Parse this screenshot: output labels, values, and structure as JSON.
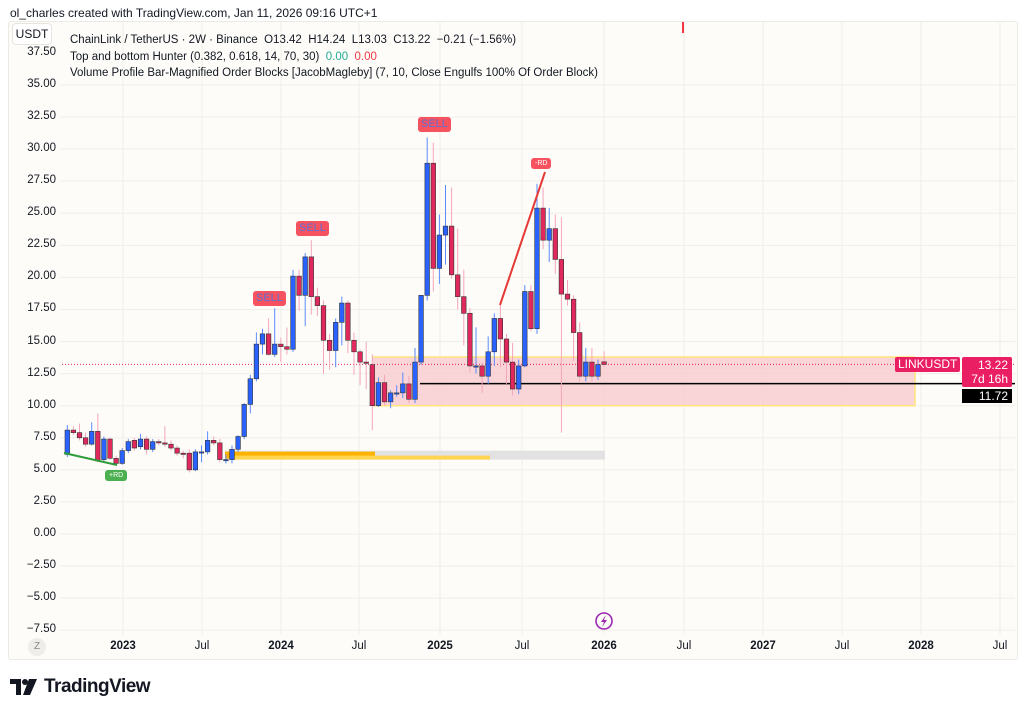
{
  "credit": "ol_charles created with TradingView.com, Jan 11, 2026 09:16 UTC+1",
  "currency_button": "USDT",
  "legend": {
    "main": "ChainLink / TetherUS · 2W · Binance",
    "open": "O13.42",
    "high": "H14.24",
    "low": "L13.03",
    "close": "C13.22",
    "change": "−0.21 (−1.56%)",
    "ind1": "Top and bottom Hunter (0.382, 0.618, 14, 70, 30)",
    "ind1_v1": "0.00",
    "ind1_v2": "0.00",
    "ind2": "Volume Profile Bar-Magnified Order Blocks [JacobMagleby] (7, 10, Close Engulfs 100% Of Order Block)"
  },
  "price_tag": {
    "price": "13.22",
    "countdown": "7d 16h",
    "symbol": "LINKUSDT",
    "level": "11.72"
  },
  "signals": {
    "sell": "SELL",
    "bear_div": "-RD",
    "bull_div": "+RD"
  },
  "z_button": "Z",
  "logo_text": "TradingView",
  "colors": {
    "up": "#2962ff",
    "down": "#e0285c",
    "up_wick": "#5b8cff",
    "down_wick": "#f4a6bb",
    "last_price": "#e91e63",
    "zone": "#f8c8cc",
    "zone_border": "#ffe57a",
    "level": "#000000",
    "bear_div": "#e53935",
    "bull_div": "#2e9d3a",
    "volume_bar": "#ffb300"
  },
  "icons": {
    "lightning": "lightning-icon",
    "logo": "tradingview-logo-icon"
  },
  "chart_data": {
    "type": "candlestick",
    "symbol": "LINKUSDT",
    "interval": "2W",
    "ylim": [
      -7.5,
      37.5
    ],
    "yticks": [
      "37.50",
      "35.00",
      "32.50",
      "30.00",
      "27.50",
      "25.00",
      "22.50",
      "20.00",
      "17.50",
      "15.00",
      "12.50",
      "10.00",
      "7.50",
      "5.00",
      "2.50",
      "0.00",
      "−2.50",
      "−5.00",
      "−7.50"
    ],
    "xticks": [
      {
        "label": "2023",
        "bold": true
      },
      {
        "label": "Jul",
        "bold": false
      },
      {
        "label": "2024",
        "bold": true
      },
      {
        "label": "Jul",
        "bold": false
      },
      {
        "label": "2025",
        "bold": true
      },
      {
        "label": "Jul",
        "bold": false
      },
      {
        "label": "2026",
        "bold": true
      },
      {
        "label": "Jul",
        "bold": false
      },
      {
        "label": "2027",
        "bold": true
      },
      {
        "label": "Jul",
        "bold": false
      },
      {
        "label": "2028",
        "bold": true
      },
      {
        "label": "Jul",
        "bold": false
      }
    ],
    "grid": true,
    "candles_ohlc": [
      [
        6.2,
        8.5,
        6.0,
        8.1
      ],
      [
        8.1,
        8.4,
        7.7,
        7.9
      ],
      [
        7.9,
        8.6,
        7.3,
        7.5
      ],
      [
        7.5,
        7.9,
        6.8,
        7.0
      ],
      [
        7.0,
        8.7,
        6.9,
        8.0
      ],
      [
        8.0,
        9.4,
        5.6,
        5.7
      ],
      [
        5.8,
        7.6,
        5.6,
        7.4
      ],
      [
        7.4,
        7.5,
        5.8,
        5.9
      ],
      [
        5.9,
        6.1,
        5.3,
        5.5
      ],
      [
        5.5,
        6.7,
        5.4,
        6.5
      ],
      [
        6.5,
        7.4,
        6.3,
        7.2
      ],
      [
        7.3,
        7.5,
        6.5,
        6.7
      ],
      [
        6.8,
        7.8,
        6.6,
        7.4
      ],
      [
        7.4,
        7.6,
        6.2,
        6.6
      ],
      [
        6.6,
        7.4,
        6.4,
        7.2
      ],
      [
        7.2,
        7.4,
        6.9,
        7.1
      ],
      [
        7.1,
        8.4,
        6.8,
        7.0
      ],
      [
        7.0,
        7.3,
        6.5,
        6.7
      ],
      [
        6.7,
        6.9,
        6.1,
        6.3
      ],
      [
        6.3,
        6.5,
        5.9,
        6.2
      ],
      [
        6.3,
        6.6,
        4.8,
        5.0
      ],
      [
        5.0,
        6.6,
        4.9,
        6.4
      ],
      [
        6.4,
        6.9,
        5.6,
        6.4
      ],
      [
        6.4,
        8.0,
        6.2,
        7.3
      ],
      [
        7.3,
        7.6,
        6.9,
        7.1
      ],
      [
        7.1,
        7.4,
        5.6,
        5.8
      ],
      [
        5.8,
        6.2,
        5.5,
        5.8
      ],
      [
        5.8,
        6.9,
        5.5,
        6.6
      ],
      [
        6.6,
        7.7,
        6.4,
        7.6
      ],
      [
        7.6,
        10.2,
        7.4,
        10.1
      ],
      [
        10.1,
        12.4,
        9.4,
        12.1
      ],
      [
        12.1,
        15.7,
        11.9,
        14.8
      ],
      [
        14.8,
        16.0,
        14.0,
        15.6
      ],
      [
        15.6,
        16.8,
        13.9,
        14.0
      ],
      [
        14.0,
        17.6,
        13.8,
        14.8
      ],
      [
        14.8,
        15.3,
        13.4,
        14.6
      ],
      [
        14.6,
        16.1,
        14.0,
        14.4
      ],
      [
        14.4,
        20.6,
        14.2,
        20.1
      ],
      [
        20.1,
        20.6,
        17.4,
        18.6
      ],
      [
        18.6,
        21.9,
        16.2,
        21.6
      ],
      [
        21.6,
        22.9,
        17.1,
        18.5
      ],
      [
        18.5,
        19.2,
        17.0,
        17.8
      ],
      [
        17.8,
        18.2,
        12.5,
        15.1
      ],
      [
        15.1,
        15.6,
        12.8,
        14.3
      ],
      [
        14.3,
        16.8,
        13.0,
        16.5
      ],
      [
        16.5,
        18.5,
        14.7,
        18.0
      ],
      [
        18.0,
        18.2,
        14.1,
        15.1
      ],
      [
        15.1,
        15.7,
        12.4,
        14.2
      ],
      [
        14.2,
        14.4,
        11.6,
        13.4
      ],
      [
        13.4,
        15.0,
        11.3,
        13.3
      ],
      [
        13.2,
        14.0,
        8.1,
        10.0
      ],
      [
        10.0,
        12.2,
        9.9,
        11.8
      ],
      [
        11.8,
        12.4,
        10.0,
        10.3
      ],
      [
        10.3,
        11.2,
        9.8,
        11.0
      ],
      [
        11.0,
        11.6,
        10.7,
        11.0
      ],
      [
        11.0,
        12.6,
        10.6,
        11.7
      ],
      [
        11.7,
        12.3,
        10.2,
        10.5
      ],
      [
        10.5,
        14.5,
        10.2,
        13.4
      ],
      [
        13.4,
        18.6,
        13.2,
        18.6
      ],
      [
        18.6,
        30.9,
        18.2,
        28.9
      ],
      [
        28.9,
        30.5,
        18.9,
        20.7
      ],
      [
        20.7,
        24.9,
        19.5,
        23.3
      ],
      [
        23.3,
        27.2,
        21.0,
        24.0
      ],
      [
        24.0,
        27.0,
        19.9,
        20.2
      ],
      [
        20.2,
        23.8,
        17.5,
        18.5
      ],
      [
        18.5,
        20.6,
        14.7,
        17.2
      ],
      [
        17.2,
        17.6,
        12.6,
        13.1
      ],
      [
        13.1,
        16.1,
        12.5,
        13.1
      ],
      [
        13.1,
        13.4,
        11.0,
        12.3
      ],
      [
        12.3,
        15.4,
        11.7,
        14.2
      ],
      [
        14.2,
        17.2,
        13.1,
        16.8
      ],
      [
        16.8,
        17.9,
        13.0,
        15.2
      ],
      [
        15.2,
        15.6,
        11.7,
        13.4
      ],
      [
        13.4,
        14.9,
        10.8,
        11.3
      ],
      [
        11.3,
        13.6,
        10.9,
        13.1
      ],
      [
        13.1,
        19.4,
        13.0,
        18.9
      ],
      [
        18.9,
        19.4,
        15.8,
        16.0
      ],
      [
        16.0,
        27.3,
        15.6,
        25.4
      ],
      [
        25.4,
        27.0,
        22.2,
        22.9
      ],
      [
        22.9,
        25.4,
        21.2,
        23.8
      ],
      [
        23.8,
        24.9,
        20.3,
        21.4
      ],
      [
        21.4,
        24.7,
        7.9,
        18.7
      ],
      [
        18.7,
        19.8,
        17.8,
        18.3
      ],
      [
        18.3,
        18.6,
        13.5,
        15.7
      ],
      [
        15.7,
        16.5,
        11.9,
        12.3
      ],
      [
        12.3,
        14.5,
        11.9,
        13.4
      ],
      [
        13.4,
        14.5,
        11.9,
        12.3
      ],
      [
        12.3,
        13.6,
        12.0,
        13.2
      ],
      [
        13.42,
        14.24,
        13.03,
        13.22
      ]
    ],
    "last_price": 13.22,
    "horizontal_level": 11.72,
    "order_block_zone": [
      10.0,
      13.8
    ],
    "volume_profile_zone": [
      5.8,
      6.5
    ]
  }
}
